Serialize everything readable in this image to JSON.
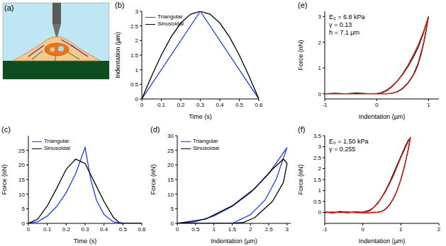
{
  "chart_data": [
    {
      "type": "diagram",
      "title": "(a)"
    },
    {
      "type": "line",
      "title": "(b)",
      "x_label": "Time (s)",
      "y_label": "Indentation (µm)",
      "xlim": [
        0,
        0.6
      ],
      "xticks": [
        0,
        0.1,
        0.2,
        0.3,
        0.4,
        0.5,
        0.6
      ],
      "ylim": [
        0,
        3
      ],
      "yticks": [
        0,
        0.5,
        1,
        1.5,
        2,
        2.5,
        3
      ],
      "grid": false,
      "legend": "upper left",
      "series": [
        {
          "name": "Triangular",
          "color": "#1f3ff0",
          "x": [
            0,
            0.3,
            0.6
          ],
          "values": [
            0,
            3,
            0
          ]
        },
        {
          "name": "Sinusoidal",
          "color": "#000000",
          "x": [
            0,
            0.05,
            0.1,
            0.15,
            0.2,
            0.25,
            0.3,
            0.35,
            0.4,
            0.45,
            0.5,
            0.55,
            0.6
          ],
          "values": [
            0,
            0.78,
            1.5,
            2.12,
            2.6,
            2.9,
            3,
            2.9,
            2.6,
            2.12,
            1.5,
            0.78,
            0
          ]
        }
      ]
    },
    {
      "type": "line",
      "title": "(c)",
      "x_label": "Time (s)",
      "y_label": "Force (nN)",
      "xlim": [
        0,
        0.6
      ],
      "xticks": [
        0,
        0.1,
        0.2,
        0.3,
        0.4,
        0.5,
        0.6
      ],
      "ylim": [
        0,
        30
      ],
      "yticks": [
        0,
        5,
        10,
        15,
        20,
        25
      ],
      "grid": false,
      "legend": "upper left",
      "series": [
        {
          "name": "Triangular",
          "color": "#1f3ff0",
          "x": [
            0,
            0.05,
            0.1,
            0.15,
            0.2,
            0.25,
            0.3,
            0.33,
            0.36,
            0.4,
            0.45,
            0.5,
            0.6
          ],
          "values": [
            0,
            0.6,
            2.5,
            5.8,
            10.5,
            17,
            26,
            15,
            8,
            3,
            0.5,
            0,
            0
          ]
        },
        {
          "name": "Sinusoidal",
          "color": "#000000",
          "x": [
            0,
            0.05,
            0.1,
            0.15,
            0.2,
            0.25,
            0.3,
            0.35,
            0.4,
            0.45,
            0.48,
            0.5,
            0.6
          ],
          "values": [
            0,
            1.5,
            6,
            12,
            18.5,
            22,
            20.5,
            14,
            7.5,
            2,
            0.3,
            0,
            0
          ]
        }
      ]
    },
    {
      "type": "line",
      "title": "(d)",
      "x_label": "Indentation (µm)",
      "y_label": "Force (nN)",
      "xlim": [
        0,
        3.1
      ],
      "xticks": [
        0,
        0.5,
        1,
        1.5,
        2,
        2.5,
        3
      ],
      "ylim": [
        0,
        30
      ],
      "yticks": [
        0,
        5,
        10,
        15,
        20,
        25,
        30
      ],
      "grid": false,
      "legend": "upper left",
      "series": [
        {
          "name": "Triangular",
          "color": "#1f3ff0",
          "x": [
            0,
            0.5,
            1,
            1.5,
            2,
            2.5,
            3,
            2.7,
            2.4,
            2,
            1.5,
            0
          ],
          "values": [
            0,
            0.6,
            2.5,
            5.8,
            10.5,
            17,
            26,
            15,
            8,
            3,
            0,
            0
          ]
        },
        {
          "name": "Sinusoidal",
          "color": "#000000",
          "x": [
            0,
            0.78,
            1.5,
            2.12,
            2.6,
            2.9,
            3,
            2.9,
            2.6,
            2.12,
            1.8,
            1.5,
            0
          ],
          "values": [
            0,
            1.5,
            6,
            12,
            18.5,
            22,
            20.5,
            14,
            7.5,
            2,
            0.3,
            0,
            0
          ]
        }
      ]
    },
    {
      "type": "line",
      "title": "(e)",
      "x_label": "Indentation (µm)",
      "y_label": "Force (nN)",
      "xlim": [
        -1,
        1.2
      ],
      "xticks": [
        -1,
        0,
        1
      ],
      "ylim": [
        -0.2,
        3.2
      ],
      "yticks": [
        0,
        1,
        2,
        3
      ],
      "grid": false,
      "annotations": [
        "E₀ = 6.8 kPa",
        "γ = 0.13",
        "h = 7.1 μm"
      ],
      "series": [
        {
          "color": "#000000",
          "x": [
            -1,
            -0.8,
            -0.6,
            -0.4,
            -0.2,
            0,
            0.1,
            0.2,
            0.3,
            0.4,
            0.5,
            0.6,
            0.7,
            0.8,
            0.9,
            1.0,
            0.95,
            0.9,
            0.85,
            0.8,
            0.75,
            0.7,
            0.6,
            0.5,
            0.4,
            0.3,
            0.2,
            0,
            -0.5,
            -1
          ],
          "values": [
            0,
            0.02,
            0,
            0.03,
            0.01,
            0,
            0.05,
            0.15,
            0.3,
            0.5,
            0.75,
            1.05,
            1.4,
            1.8,
            2.35,
            3.0,
            2.4,
            1.9,
            1.5,
            1.15,
            0.9,
            0.7,
            0.4,
            0.2,
            0.08,
            0.02,
            0,
            0.01,
            0,
            0
          ]
        },
        {
          "color": "#e8201a",
          "x": [
            -1,
            0,
            0.1,
            0.2,
            0.3,
            0.4,
            0.5,
            0.6,
            0.7,
            0.8,
            0.9,
            1.0,
            0.9,
            0.8,
            0.7,
            0.6,
            0.5,
            0.4,
            0.3,
            0.2,
            0,
            -1
          ],
          "values": [
            0,
            0,
            0.03,
            0.12,
            0.28,
            0.5,
            0.78,
            1.1,
            1.48,
            1.9,
            2.4,
            3.0,
            1.95,
            1.2,
            0.72,
            0.42,
            0.22,
            0.09,
            0.02,
            0,
            0,
            0
          ]
        }
      ]
    },
    {
      "type": "line",
      "title": "(f)",
      "x_label": "Indentation (µm)",
      "y_label": "Force (nN)",
      "xlim": [
        -1,
        2
      ],
      "xticks": [
        -1,
        0,
        1,
        2
      ],
      "ylim": [
        -0.5,
        3.5
      ],
      "yticks": [
        0,
        0.5,
        1,
        1.5,
        2,
        2.5,
        3,
        3.5
      ],
      "grid": false,
      "annotations": [
        "E₀ = 1.50 kPa",
        "γ = 0.255"
      ],
      "series": [
        {
          "color": "#000000",
          "x": [
            -1,
            -0.8,
            -0.6,
            -0.4,
            -0.2,
            0,
            0.1,
            0.2,
            0.3,
            0.4,
            0.5,
            0.6,
            0.7,
            0.8,
            0.9,
            1.0,
            1.1,
            1.2,
            1.25,
            1.2,
            1.1,
            1.0,
            0.9,
            0.8,
            0.7,
            0.6,
            0.5,
            0.4,
            0.3,
            0,
            -0.5,
            -1
          ],
          "values": [
            0.02,
            -0.03,
            0.04,
            -0.02,
            0.03,
            0.01,
            0.06,
            0.12,
            0.25,
            0.45,
            0.7,
            1.0,
            1.35,
            1.75,
            2.15,
            2.55,
            2.95,
            3.3,
            3.4,
            2.9,
            2.15,
            1.5,
            1.0,
            0.62,
            0.35,
            0.16,
            0.05,
            0.01,
            0,
            -0.02,
            0.03,
            0
          ]
        },
        {
          "color": "#e8201a",
          "x": [
            -1,
            0,
            0.2,
            0.4,
            0.6,
            0.8,
            1.0,
            1.2,
            1.25,
            1.1,
            1.0,
            0.9,
            0.8,
            0.7,
            0.6,
            0.5,
            0.4,
            0,
            -1
          ],
          "values": [
            0,
            0,
            0.08,
            0.42,
            0.95,
            1.65,
            2.5,
            3.25,
            3.4,
            2.1,
            1.5,
            1.0,
            0.6,
            0.33,
            0.14,
            0.04,
            0,
            0,
            0
          ]
        }
      ]
    }
  ]
}
